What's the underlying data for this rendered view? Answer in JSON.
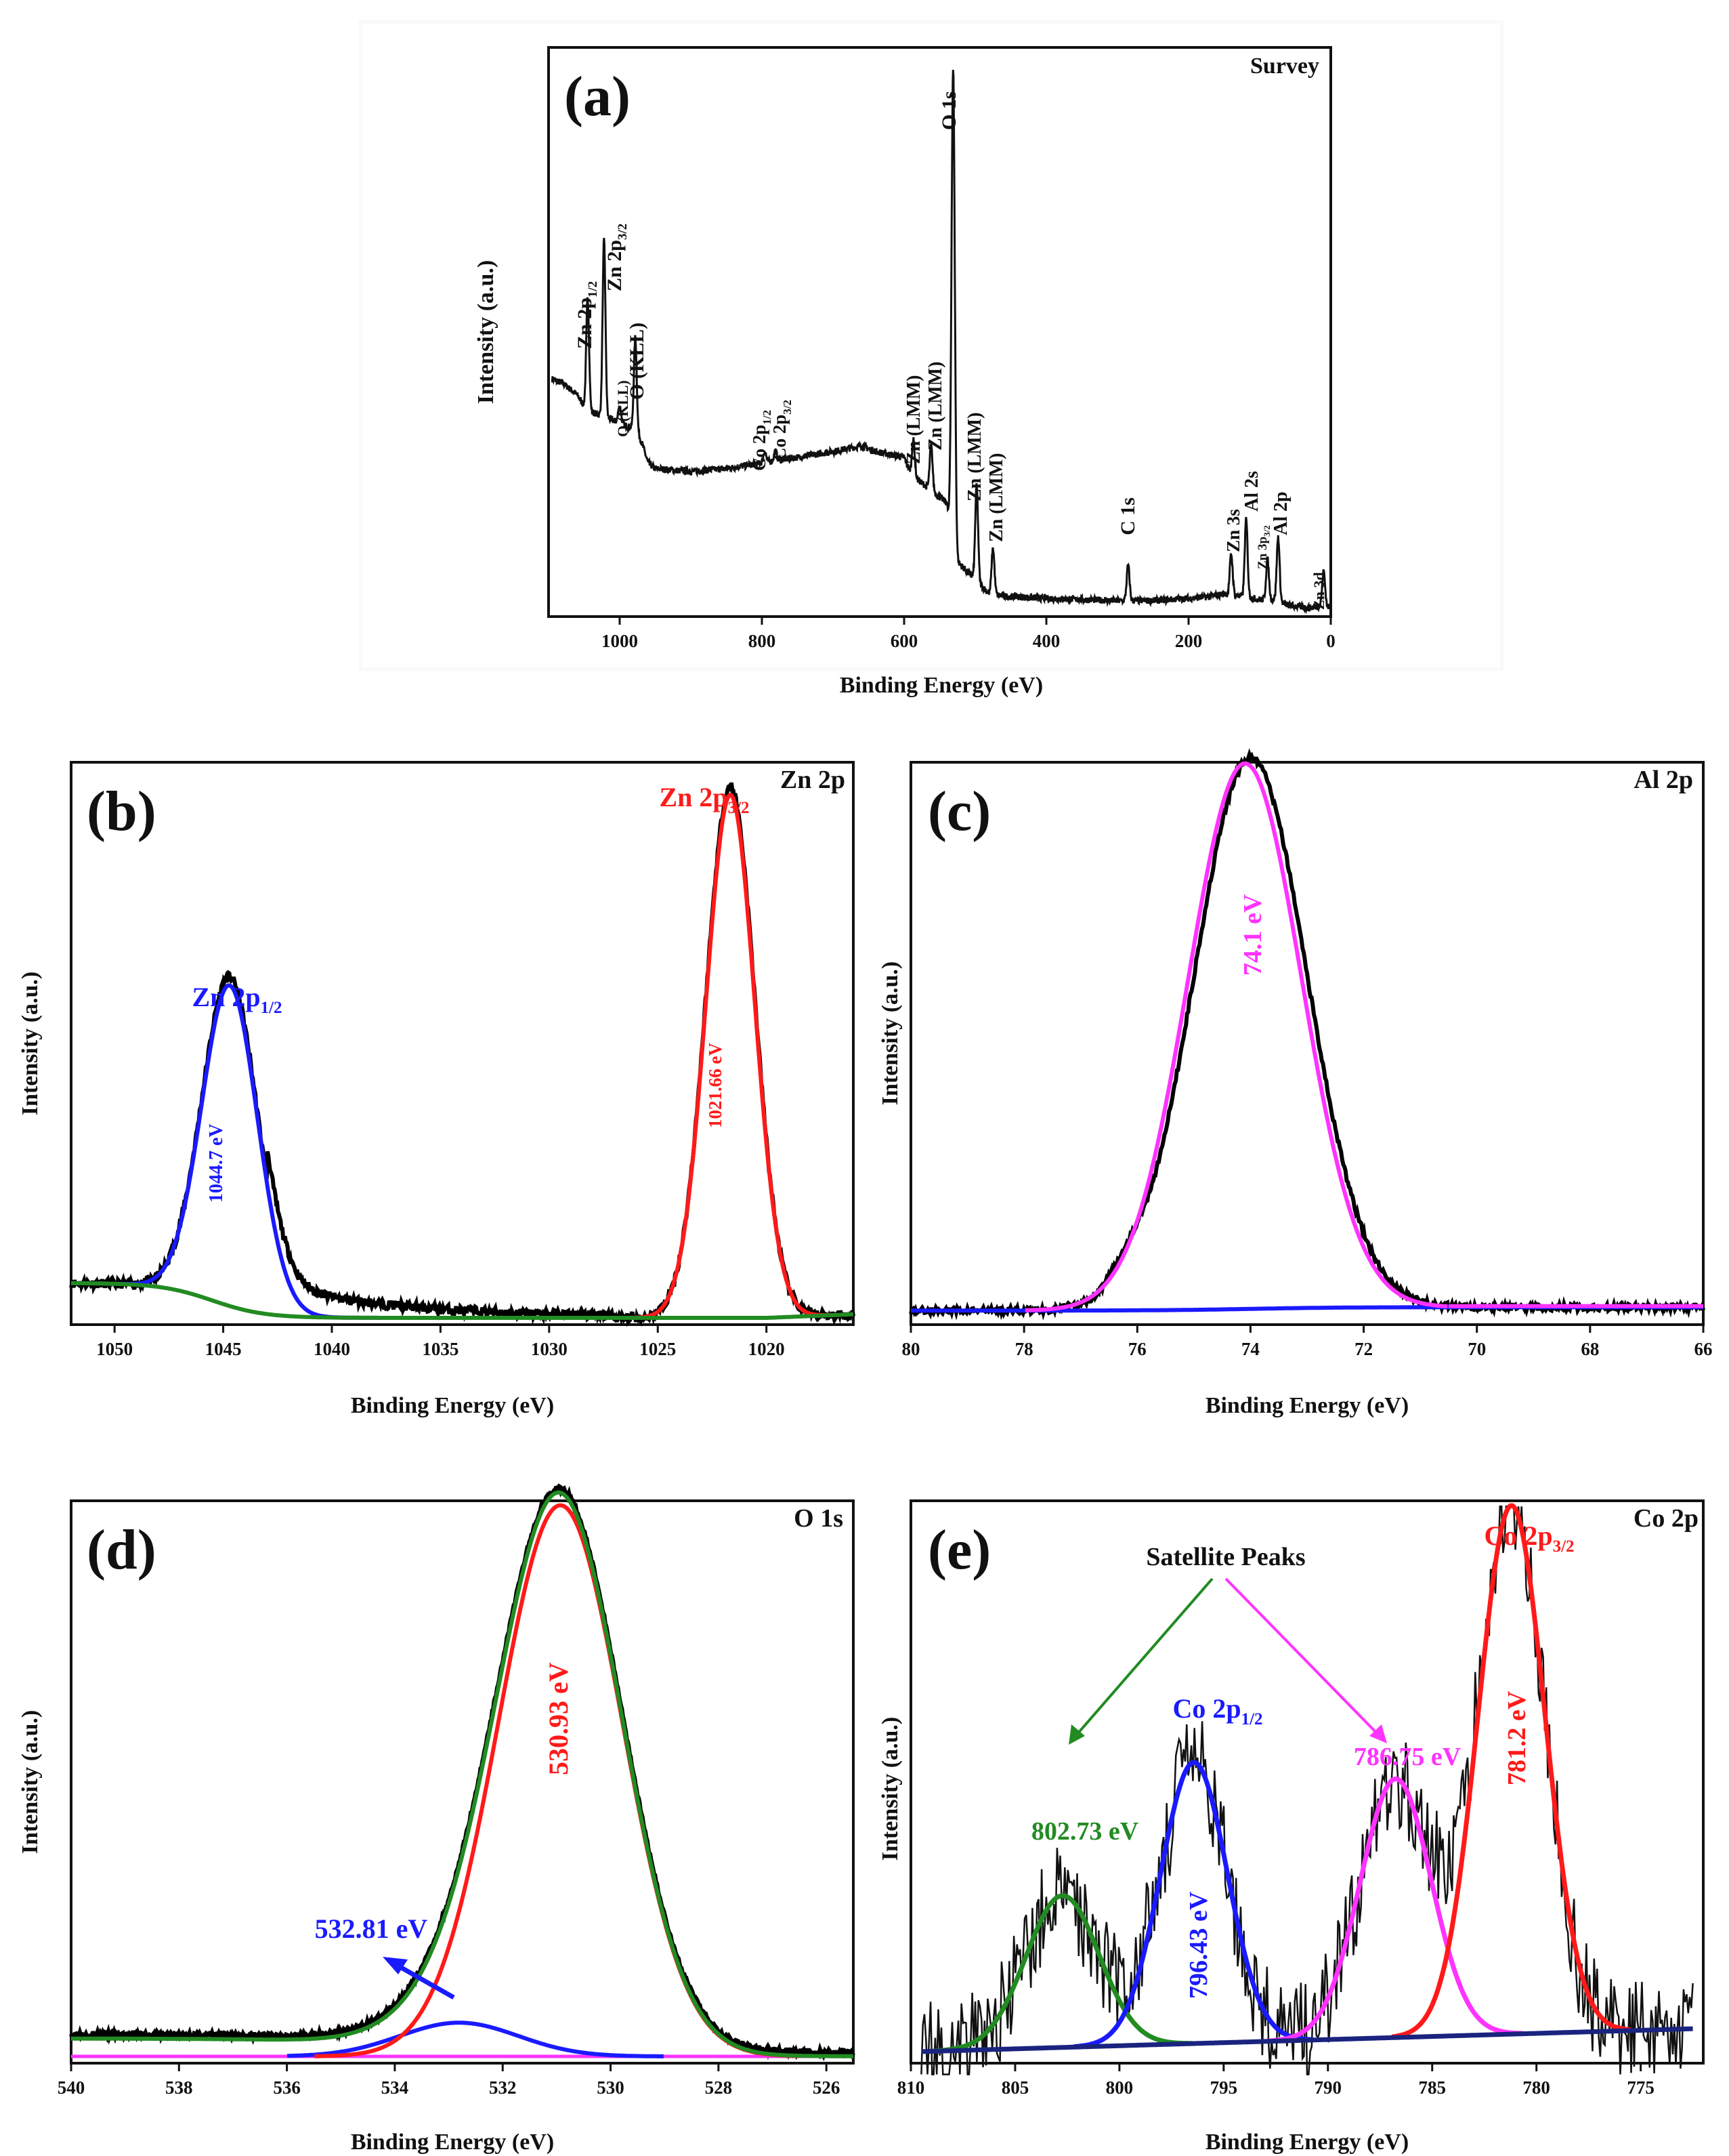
{
  "colors": {
    "black": "#000000",
    "blue": "#1a1aff",
    "red": "#ff1a1a",
    "green": "#228B22",
    "magenta": "#ff33ff",
    "navy": "#1a237e"
  },
  "chart_data": [
    {
      "id": "a",
      "type": "line",
      "panel_letter": "(a)",
      "corner_label": "Survey",
      "xlabel": "Binding Energy (eV)",
      "ylabel": "Intensity (a.u.)",
      "xlim": [
        1100,
        0
      ],
      "ylim": [
        0,
        100
      ],
      "xticks": [
        1000,
        800,
        600,
        400,
        200,
        0
      ],
      "baseline": [
        [
          1100,
          42
        ],
        [
          1080,
          41
        ],
        [
          1060,
          39
        ],
        [
          1050,
          37
        ],
        [
          1040,
          36
        ],
        [
          1020,
          35
        ],
        [
          1000,
          34
        ],
        [
          980,
          33
        ],
        [
          970,
          31
        ],
        [
          960,
          27
        ],
        [
          950,
          26
        ],
        [
          900,
          25.5
        ],
        [
          850,
          26
        ],
        [
          800,
          27
        ],
        [
          750,
          28
        ],
        [
          700,
          29
        ],
        [
          660,
          30
        ],
        [
          640,
          29
        ],
        [
          600,
          28
        ],
        [
          590,
          25
        ],
        [
          560,
          22
        ],
        [
          540,
          20
        ],
        [
          530,
          10
        ],
        [
          520,
          9
        ],
        [
          500,
          6.5
        ],
        [
          480,
          4
        ],
        [
          460,
          3.6
        ],
        [
          400,
          3.2
        ],
        [
          300,
          2.8
        ],
        [
          250,
          2.8
        ],
        [
          200,
          3.2
        ],
        [
          170,
          3.5
        ],
        [
          150,
          4
        ],
        [
          120,
          3.5
        ],
        [
          100,
          3
        ],
        [
          80,
          3
        ],
        [
          60,
          2
        ],
        [
          30,
          1.5
        ],
        [
          10,
          2
        ],
        [
          0,
          1.5
        ]
      ],
      "peaks": [
        {
          "label": "Zn 2p1/2",
          "x": 1045,
          "y": 56
        },
        {
          "label": "Zn 2p3/2",
          "x": 1022,
          "y": 66
        },
        {
          "label": "O (KLL)",
          "x": 1000,
          "y": 37
        },
        {
          "label": "O (KLL)",
          "x": 978,
          "y": 49
        },
        {
          "label": "Co 2p1/2",
          "x": 796,
          "y": 29
        },
        {
          "label": "Co 2p3/2",
          "x": 781,
          "y": 29
        },
        {
          "label": "Zn (LMM)",
          "x": 587,
          "y": 31
        },
        {
          "label": "Zn (LMM)",
          "x": 562,
          "y": 30
        },
        {
          "label": "O 1s",
          "x": 531,
          "y": 96
        },
        {
          "label": "Zn (LMM)",
          "x": 498,
          "y": 23
        },
        {
          "label": "Zn (LMM)",
          "x": 475,
          "y": 12
        },
        {
          "label": "C 1s",
          "x": 285,
          "y": 9
        },
        {
          "label": "Zn 3s",
          "x": 140,
          "y": 11
        },
        {
          "label": "Al 2s",
          "x": 119,
          "y": 17
        },
        {
          "label": "Zn 3p3/2",
          "x": 89,
          "y": 10
        },
        {
          "label": "Al 2p",
          "x": 74,
          "y": 14
        },
        {
          "label": "Zn 3d",
          "x": 10,
          "y": 8
        }
      ]
    },
    {
      "id": "b",
      "type": "line",
      "panel_letter": "(b)",
      "corner_label": "Zn 2p",
      "xlabel": "Binding Energy (eV)",
      "ylabel": "Intensity (a.u.)",
      "xlim": [
        1052,
        1016
      ],
      "ylim": [
        0,
        100
      ],
      "xticks": [
        1050,
        1045,
        1040,
        1035,
        1030,
        1025,
        1020
      ],
      "series": [
        {
          "name": "Zn 2p1/2 fit",
          "color": "blue",
          "center": 1044.7,
          "amplitude": 57,
          "sigma": 1.28
        },
        {
          "name": "Zn 2p3/2 fit",
          "color": "red",
          "center": 1021.66,
          "amplitude": 93,
          "sigma": 1.12
        },
        {
          "name": "Background",
          "color": "green"
        },
        {
          "name": "Experimental",
          "color": "black"
        }
      ],
      "annotations": [
        {
          "text": "Zn 2p1/2",
          "color": "blue"
        },
        {
          "text": "1044.7 eV",
          "color": "blue"
        },
        {
          "text": "Zn 2p3/2",
          "color": "red"
        },
        {
          "text": "1021.66 eV",
          "color": "red"
        }
      ]
    },
    {
      "id": "c",
      "type": "line",
      "panel_letter": "(c)",
      "corner_label": "Al 2p",
      "xlabel": "Binding Energy (eV)",
      "ylabel": "Intensity (a.u.)",
      "xlim": [
        80,
        66
      ],
      "ylim": [
        0,
        100
      ],
      "xticks": [
        80,
        78,
        76,
        74,
        72,
        70,
        68,
        66
      ],
      "series": [
        {
          "name": "Al 2p fit",
          "color": "magenta",
          "center": 74.1,
          "amplitude": 100,
          "sigma": 1.0
        },
        {
          "name": "Background",
          "color": "blue"
        },
        {
          "name": "Experimental",
          "color": "black"
        }
      ],
      "annotations": [
        {
          "text": "74.1 eV",
          "color": "magenta"
        }
      ]
    },
    {
      "id": "d",
      "type": "line",
      "panel_letter": "(d)",
      "corner_label": "O 1s",
      "xlabel": "Binding Energy (eV)",
      "ylabel": "Intensity (a.u.)",
      "xlim": [
        540,
        525.5
      ],
      "ylim": [
        0,
        100
      ],
      "xticks": [
        540,
        538,
        536,
        534,
        532,
        530,
        528,
        526
      ],
      "series": [
        {
          "name": "O 1s main fit",
          "color": "red",
          "center": 530.93,
          "amplitude": 98,
          "sigma": 1.15
        },
        {
          "name": "O 1s minor fit",
          "color": "blue",
          "center": 532.81,
          "amplitude": 6,
          "sigma": 1.1
        },
        {
          "name": "Envelope",
          "color": "green"
        },
        {
          "name": "Baseline",
          "color": "magenta"
        },
        {
          "name": "Experimental",
          "color": "black"
        }
      ],
      "annotations": [
        {
          "text": "530.93 eV",
          "color": "red"
        },
        {
          "text": "532.81 eV",
          "color": "blue"
        }
      ]
    },
    {
      "id": "e",
      "type": "line",
      "panel_letter": "(e)",
      "corner_label": "Co 2p",
      "xlabel": "Binding Energy (eV)",
      "ylabel": "Intensity (a.u.)",
      "xlim": [
        810,
        772
      ],
      "ylim": [
        0,
        100
      ],
      "xticks": [
        810,
        805,
        800,
        795,
        790,
        785,
        780,
        775
      ],
      "series": [
        {
          "name": "Satellite 802.73",
          "color": "green",
          "center": 802.73,
          "amplitude": 27,
          "sigma": 1.75
        },
        {
          "name": "Co 2p1/2",
          "color": "blue",
          "center": 796.43,
          "amplitude": 50,
          "sigma": 1.6
        },
        {
          "name": "Satellite 786.75",
          "color": "magenta",
          "center": 786.75,
          "amplitude": 46,
          "sigma": 1.7
        },
        {
          "name": "Co 2p3/2",
          "color": "red",
          "center": 781.2,
          "amplitude": 94,
          "sigma": 1.6
        },
        {
          "name": "Baseline",
          "color": "navy"
        },
        {
          "name": "Experimental",
          "color": "black"
        }
      ],
      "annotations": [
        {
          "text": "Satellite Peaks",
          "color": "black"
        },
        {
          "text": "Co 2p3/2",
          "color": "red"
        },
        {
          "text": "Co 2p1/2",
          "color": "blue"
        },
        {
          "text": "786.75 eV",
          "color": "magenta"
        },
        {
          "text": "781.2 eV",
          "color": "red"
        },
        {
          "text": "802.73 eV",
          "color": "green"
        },
        {
          "text": "796.43 eV",
          "color": "blue"
        }
      ]
    }
  ]
}
